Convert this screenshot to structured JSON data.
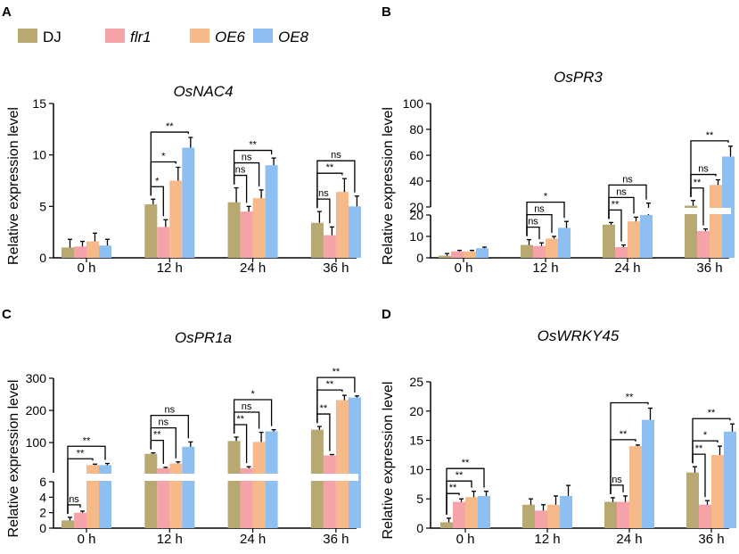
{
  "legend": [
    {
      "name": "DJ",
      "italic": false,
      "color": "#b8a872"
    },
    {
      "name": "flr1",
      "italic": true,
      "color": "#f5a3a8"
    },
    {
      "name": "OE6",
      "italic": true,
      "color": "#f5b98a"
    },
    {
      "name": "OE8",
      "italic": true,
      "color": "#8ebff0"
    }
  ],
  "chart_data": [
    {
      "panel": "A",
      "type": "bar",
      "title": "OsNAC4",
      "ylabel": "Relative expression level",
      "categories": [
        "0 h",
        "12 h",
        "24 h",
        "36 h"
      ],
      "ylim": [
        0,
        15
      ],
      "yticks": [
        0,
        5,
        10,
        15
      ],
      "series": [
        {
          "name": "DJ",
          "values": [
            1.0,
            5.2,
            5.4,
            3.4
          ],
          "errors": [
            0.8,
            0.5,
            1.4,
            1.1
          ]
        },
        {
          "name": "flr1",
          "values": [
            1.1,
            3.0,
            4.5,
            2.2
          ],
          "errors": [
            0.5,
            0.7,
            0.5,
            0.8
          ]
        },
        {
          "name": "OE6",
          "values": [
            1.6,
            7.5,
            5.8,
            6.4
          ],
          "errors": [
            0.8,
            1.3,
            0.8,
            1.3
          ]
        },
        {
          "name": "OE8",
          "values": [
            1.2,
            10.7,
            9.0,
            5.0
          ],
          "errors": [
            0.6,
            1.0,
            0.7,
            1.0
          ]
        }
      ],
      "annotations": [
        {
          "cat": 1,
          "to": 1,
          "label": "*"
        },
        {
          "cat": 1,
          "to": 2,
          "label": "*"
        },
        {
          "cat": 1,
          "to": 3,
          "label": "**"
        },
        {
          "cat": 2,
          "to": 1,
          "label": "ns"
        },
        {
          "cat": 2,
          "to": 2,
          "label": "ns"
        },
        {
          "cat": 2,
          "to": 3,
          "label": "**"
        },
        {
          "cat": 3,
          "to": 1,
          "label": "ns"
        },
        {
          "cat": 3,
          "to": 2,
          "label": "**"
        },
        {
          "cat": 3,
          "to": 3,
          "label": "ns"
        }
      ]
    },
    {
      "panel": "B",
      "type": "bar",
      "title": "OsPR3",
      "ylabel": "Relative expression level",
      "categories": [
        "0 h",
        "12 h",
        "24 h",
        "36 h"
      ],
      "axis_break": true,
      "lower": {
        "ylim": [
          0,
          20
        ],
        "yticks": [
          0,
          10,
          20
        ]
      },
      "upper": {
        "ylim": [
          20,
          100
        ],
        "yticks": [
          20,
          40,
          60,
          80,
          100
        ]
      },
      "series": [
        {
          "name": "DJ",
          "values": [
            1.0,
            6.0,
            15.5,
            21.0
          ],
          "errors": [
            1.0,
            2.5,
            1.0,
            4.0
          ]
        },
        {
          "name": "flr1",
          "values": [
            3.0,
            5.5,
            5.0,
            12.5
          ],
          "errors": [
            0.5,
            1.5,
            1.0,
            1.0
          ]
        },
        {
          "name": "OE6",
          "values": [
            3.0,
            9.0,
            17.0,
            37.0
          ],
          "errors": [
            0.5,
            1.0,
            2.0,
            4.0
          ]
        },
        {
          "name": "OE8",
          "values": [
            4.5,
            14.0,
            20.0,
            59.0
          ],
          "errors": [
            0.5,
            3.0,
            3.0,
            8.0
          ]
        }
      ],
      "annotations": [
        {
          "cat": 1,
          "to": 1,
          "label": "ns"
        },
        {
          "cat": 1,
          "to": 2,
          "label": "ns"
        },
        {
          "cat": 1,
          "to": 3,
          "label": "*"
        },
        {
          "cat": 2,
          "to": 1,
          "label": "**"
        },
        {
          "cat": 2,
          "to": 2,
          "label": "ns"
        },
        {
          "cat": 2,
          "to": 3,
          "label": "ns"
        },
        {
          "cat": 3,
          "to": 1,
          "label": "**"
        },
        {
          "cat": 3,
          "to": 2,
          "label": "ns"
        },
        {
          "cat": 3,
          "to": 3,
          "label": "**"
        }
      ]
    },
    {
      "panel": "C",
      "type": "bar",
      "title": "OsPR1a",
      "ylabel": "Relative expression level",
      "categories": [
        "0 h",
        "12 h",
        "24 h",
        "36 h"
      ],
      "axis_break": true,
      "lower": {
        "ylim": [
          0,
          6
        ],
        "yticks": [
          0,
          2,
          4,
          6
        ]
      },
      "upper": {
        "ylim": [
          6,
          300
        ],
        "yticks": [
          100,
          200,
          300
        ]
      },
      "series": [
        {
          "name": "DJ",
          "values": [
            1.0,
            65,
            105,
            140
          ],
          "errors": [
            0.4,
            3,
            12,
            10
          ]
        },
        {
          "name": "flr1",
          "values": [
            2.0,
            20,
            20,
            60
          ],
          "errors": [
            0.2,
            3,
            5,
            3
          ]
        },
        {
          "name": "OE6",
          "values": [
            30,
            35,
            102,
            232
          ],
          "errors": [
            3,
            5,
            30,
            15
          ]
        },
        {
          "name": "OE8",
          "values": [
            30,
            87,
            135,
            240
          ],
          "errors": [
            5,
            15,
            5,
            5
          ]
        }
      ],
      "annotations": [
        {
          "cat": 0,
          "to": 1,
          "label": "ns"
        },
        {
          "cat": 0,
          "to": 2,
          "label": "**"
        },
        {
          "cat": 0,
          "to": 3,
          "label": "**"
        },
        {
          "cat": 1,
          "to": 1,
          "label": "**"
        },
        {
          "cat": 1,
          "to": 2,
          "label": "ns"
        },
        {
          "cat": 1,
          "to": 3,
          "label": "ns"
        },
        {
          "cat": 2,
          "to": 1,
          "label": "**"
        },
        {
          "cat": 2,
          "to": 2,
          "label": "ns"
        },
        {
          "cat": 2,
          "to": 3,
          "label": "*"
        },
        {
          "cat": 3,
          "to": 1,
          "label": "**"
        },
        {
          "cat": 3,
          "to": 2,
          "label": "**"
        },
        {
          "cat": 3,
          "to": 3,
          "label": "**"
        }
      ]
    },
    {
      "panel": "D",
      "type": "bar",
      "title": "OsWRKY45",
      "ylabel": "Relative expression level",
      "categories": [
        "0 h",
        "12 h",
        "24 h",
        "36 h"
      ],
      "ylim": [
        0,
        25
      ],
      "yticks": [
        0,
        5,
        10,
        15,
        20,
        25
      ],
      "series": [
        {
          "name": "DJ",
          "values": [
            1.0,
            4.0,
            4.5,
            9.5
          ],
          "errors": [
            0.7,
            1.0,
            0.7,
            1.0
          ]
        },
        {
          "name": "flr1",
          "values": [
            4.5,
            3.0,
            4.5,
            4.0
          ],
          "errors": [
            0.5,
            1.0,
            1.0,
            0.7
          ]
        },
        {
          "name": "OE6",
          "values": [
            5.3,
            4.0,
            14.0,
            12.5
          ],
          "errors": [
            1.0,
            1.5,
            0.2,
            1.5
          ]
        },
        {
          "name": "OE8",
          "values": [
            5.5,
            5.5,
            18.5,
            16.5
          ],
          "errors": [
            0.8,
            1.8,
            2.0,
            1.3
          ]
        }
      ],
      "annotations": [
        {
          "cat": 0,
          "to": 1,
          "label": "**"
        },
        {
          "cat": 0,
          "to": 2,
          "label": "**"
        },
        {
          "cat": 0,
          "to": 3,
          "label": "**"
        },
        {
          "cat": 2,
          "to": 1,
          "label": "ns"
        },
        {
          "cat": 2,
          "to": 2,
          "label": "**"
        },
        {
          "cat": 2,
          "to": 3,
          "label": "**"
        },
        {
          "cat": 3,
          "to": 1,
          "label": "**"
        },
        {
          "cat": 3,
          "to": 2,
          "label": "*"
        },
        {
          "cat": 3,
          "to": 3,
          "label": "**"
        }
      ]
    }
  ]
}
